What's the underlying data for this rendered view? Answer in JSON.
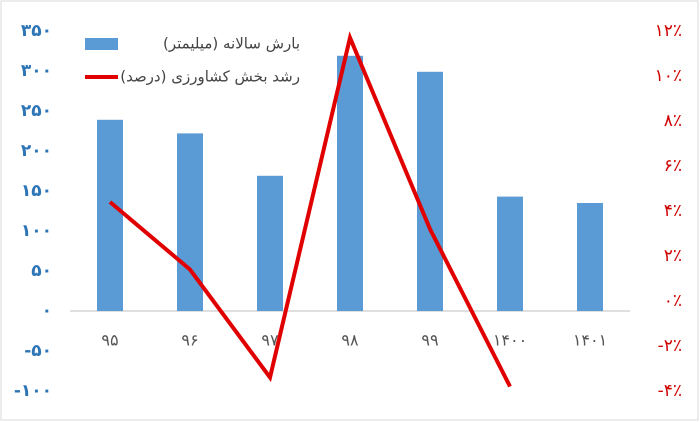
{
  "chart_data": {
    "type": "bar-line",
    "categories": [
      "۹۵",
      "۹۶",
      "۹۷",
      "۹۸",
      "۹۹",
      "۱۴۰۰",
      "۱۴۰۱"
    ],
    "series": [
      {
        "name": "بارش سالانه (میلیمتر)",
        "type": "bar",
        "color": "#5b9bd5",
        "values": [
          239,
          222,
          169,
          319,
          299,
          143,
          135
        ]
      },
      {
        "name": "رشد بخش کشاورزی (درصد)",
        "type": "line",
        "axis": "y2",
        "color": "#e00000",
        "values": [
          4.4,
          1.4,
          -3.4,
          11.7,
          3.2,
          -3.8,
          null
        ]
      }
    ],
    "ylim": [
      -100,
      350
    ],
    "yticks": [
      {
        "value": -100,
        "label": "-۱۰۰"
      },
      {
        "value": -50,
        "label": "-۵۰"
      },
      {
        "value": 0,
        "label": "۰"
      },
      {
        "value": 50,
        "label": "۵۰"
      },
      {
        "value": 100,
        "label": "۱۰۰"
      },
      {
        "value": 150,
        "label": "۱۵۰"
      },
      {
        "value": 200,
        "label": "۲۰۰"
      },
      {
        "value": 250,
        "label": "۲۵۰"
      },
      {
        "value": 300,
        "label": "۳۰۰"
      },
      {
        "value": 350,
        "label": "۳۵۰"
      }
    ],
    "y2lim": [
      -4,
      12
    ],
    "y2ticks": [
      {
        "value": -4,
        "label": "-۴٪"
      },
      {
        "value": -2,
        "label": "-۲٪"
      },
      {
        "value": 0,
        "label": "۰٪"
      },
      {
        "value": 2,
        "label": "۲٪"
      },
      {
        "value": 4,
        "label": "۴٪"
      },
      {
        "value": 6,
        "label": "۶٪"
      },
      {
        "value": 8,
        "label": "۸٪"
      },
      {
        "value": 10,
        "label": "۱۰٪"
      },
      {
        "value": 12,
        "label": "۱۲٪"
      }
    ],
    "legend": "top-left"
  }
}
